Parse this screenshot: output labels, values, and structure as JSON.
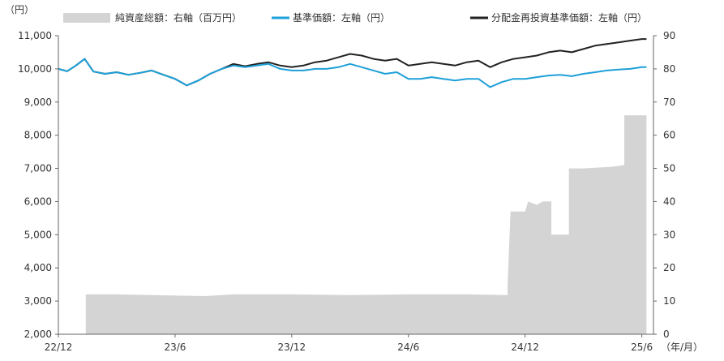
{
  "corner_label": "（円）",
  "chart_data": {
    "type": "line",
    "xlabel": "（年/月）",
    "x_ticks": [
      "22/12",
      "23/6",
      "23/12",
      "24/6",
      "24/12",
      "25/6"
    ],
    "y_left": {
      "ticks": [
        "11,000",
        "10,000",
        "9,000",
        "8,000",
        "7,000",
        "6,000",
        "5,000",
        "4,000",
        "3,000",
        "2,000"
      ],
      "ylim": [
        2000,
        11000
      ]
    },
    "y_right": {
      "ticks": [
        "90",
        "80",
        "70",
        "60",
        "50",
        "40",
        "30",
        "20",
        "10",
        "0"
      ],
      "ylim": [
        0,
        90
      ]
    },
    "grid": false,
    "legend_position": "top",
    "legend": [
      {
        "label": "純資産総額：右軸（百万円）",
        "kind": "area",
        "color": "#d4d4d4"
      },
      {
        "label": "基準価額：左軸（円）",
        "kind": "line",
        "color": "#1ea0d8"
      },
      {
        "label": "分配金再投資基準価額：左軸（円）",
        "kind": "line",
        "color": "#222222"
      }
    ],
    "series": [
      {
        "name": "純資産総額：右軸（百万円）",
        "axis": "right",
        "type": "area",
        "color": "#d4d4d4",
        "points": [
          [
            0,
            0
          ],
          [
            0.47,
            0
          ],
          [
            0.47,
            12
          ],
          [
            1.0,
            12
          ],
          [
            2.5,
            11.5
          ],
          [
            3.0,
            12
          ],
          [
            4.0,
            12
          ],
          [
            5.0,
            11.8
          ],
          [
            6.0,
            12
          ],
          [
            7.0,
            12
          ],
          [
            7.7,
            11.8
          ],
          [
            7.7,
            15
          ],
          [
            7.75,
            37
          ],
          [
            8.0,
            37
          ],
          [
            8.05,
            40
          ],
          [
            8.2,
            39
          ],
          [
            8.3,
            40
          ],
          [
            8.45,
            40
          ],
          [
            8.45,
            30
          ],
          [
            8.75,
            30
          ],
          [
            8.75,
            50
          ],
          [
            9.0,
            50
          ],
          [
            9.5,
            50.5
          ],
          [
            9.7,
            51
          ],
          [
            9.7,
            66
          ],
          [
            10.08,
            66
          ],
          [
            10.08,
            0
          ]
        ]
      },
      {
        "name": "分配金再投資基準価額：左軸（円）",
        "axis": "left",
        "type": "line",
        "color": "#222222",
        "points": [
          [
            0,
            10000
          ],
          [
            0.15,
            9930
          ],
          [
            0.3,
            10100
          ],
          [
            0.45,
            10300
          ],
          [
            0.6,
            9920
          ],
          [
            0.8,
            9850
          ],
          [
            1.0,
            9900
          ],
          [
            1.2,
            9820
          ],
          [
            1.4,
            9880
          ],
          [
            1.6,
            9950
          ],
          [
            1.8,
            9820
          ],
          [
            2.0,
            9700
          ],
          [
            2.2,
            9500
          ],
          [
            2.4,
            9650
          ],
          [
            2.6,
            9850
          ],
          [
            2.8,
            10000
          ],
          [
            3.0,
            10150
          ],
          [
            3.2,
            10080
          ],
          [
            3.4,
            10150
          ],
          [
            3.6,
            10200
          ],
          [
            3.8,
            10100
          ],
          [
            4.0,
            10050
          ],
          [
            4.2,
            10100
          ],
          [
            4.4,
            10200
          ],
          [
            4.6,
            10250
          ],
          [
            4.8,
            10350
          ],
          [
            5.0,
            10450
          ],
          [
            5.2,
            10400
          ],
          [
            5.4,
            10300
          ],
          [
            5.6,
            10250
          ],
          [
            5.8,
            10300
          ],
          [
            6.0,
            10100
          ],
          [
            6.2,
            10150
          ],
          [
            6.4,
            10200
          ],
          [
            6.6,
            10150
          ],
          [
            6.8,
            10100
          ],
          [
            7.0,
            10200
          ],
          [
            7.2,
            10250
          ],
          [
            7.4,
            10050
          ],
          [
            7.6,
            10200
          ],
          [
            7.8,
            10300
          ],
          [
            8.0,
            10350
          ],
          [
            8.2,
            10400
          ],
          [
            8.4,
            10500
          ],
          [
            8.6,
            10550
          ],
          [
            8.8,
            10500
          ],
          [
            9.0,
            10600
          ],
          [
            9.2,
            10700
          ],
          [
            9.4,
            10750
          ],
          [
            9.6,
            10800
          ],
          [
            9.8,
            10850
          ],
          [
            10.0,
            10900
          ],
          [
            10.08,
            10900
          ]
        ]
      },
      {
        "name": "基準価額：左軸（円）",
        "axis": "left",
        "type": "line",
        "color": "#1ea0d8",
        "points": [
          [
            0,
            10000
          ],
          [
            0.15,
            9930
          ],
          [
            0.3,
            10100
          ],
          [
            0.45,
            10300
          ],
          [
            0.6,
            9920
          ],
          [
            0.8,
            9850
          ],
          [
            1.0,
            9900
          ],
          [
            1.2,
            9820
          ],
          [
            1.4,
            9880
          ],
          [
            1.6,
            9950
          ],
          [
            1.8,
            9820
          ],
          [
            2.0,
            9700
          ],
          [
            2.2,
            9500
          ],
          [
            2.4,
            9650
          ],
          [
            2.6,
            9850
          ],
          [
            2.8,
            10000
          ],
          [
            3.0,
            10100
          ],
          [
            3.2,
            10050
          ],
          [
            3.4,
            10100
          ],
          [
            3.6,
            10150
          ],
          [
            3.8,
            10000
          ],
          [
            4.0,
            9950
          ],
          [
            4.2,
            9950
          ],
          [
            4.4,
            10000
          ],
          [
            4.6,
            10000
          ],
          [
            4.8,
            10050
          ],
          [
            5.0,
            10150
          ],
          [
            5.2,
            10050
          ],
          [
            5.4,
            9950
          ],
          [
            5.6,
            9850
          ],
          [
            5.8,
            9900
          ],
          [
            6.0,
            9700
          ],
          [
            6.2,
            9700
          ],
          [
            6.4,
            9750
          ],
          [
            6.6,
            9700
          ],
          [
            6.8,
            9650
          ],
          [
            7.0,
            9700
          ],
          [
            7.2,
            9700
          ],
          [
            7.4,
            9450
          ],
          [
            7.6,
            9600
          ],
          [
            7.8,
            9700
          ],
          [
            8.0,
            9700
          ],
          [
            8.2,
            9750
          ],
          [
            8.4,
            9800
          ],
          [
            8.6,
            9820
          ],
          [
            8.8,
            9780
          ],
          [
            9.0,
            9850
          ],
          [
            9.2,
            9900
          ],
          [
            9.4,
            9950
          ],
          [
            9.6,
            9980
          ],
          [
            9.8,
            10000
          ],
          [
            10.0,
            10050
          ],
          [
            10.08,
            10050
          ]
        ]
      }
    ]
  }
}
